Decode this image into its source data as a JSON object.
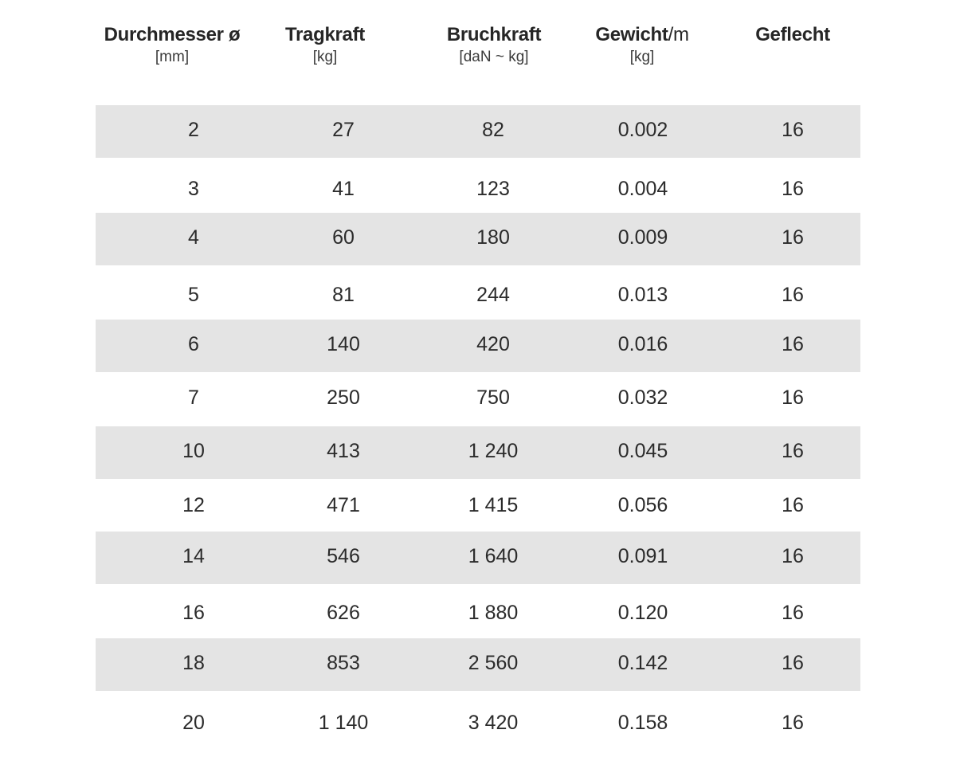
{
  "table": {
    "columns": [
      {
        "title": "Durchmesser ø",
        "title_suffix": "",
        "unit": "[mm]"
      },
      {
        "title": "Tragkraft",
        "title_suffix": "",
        "unit": "[kg]"
      },
      {
        "title": "Bruchkraft",
        "title_suffix": "",
        "unit": "[daN ~ kg]"
      },
      {
        "title": "Gewicht",
        "title_suffix": "/m",
        "unit": "[kg]"
      },
      {
        "title": "Geflecht",
        "title_suffix": "",
        "unit": ""
      }
    ],
    "rows": [
      [
        "2",
        "27",
        "82",
        "0.002",
        "16"
      ],
      [
        "3",
        "41",
        "123",
        "0.004",
        "16"
      ],
      [
        "4",
        "60",
        "180",
        "0.009",
        "16"
      ],
      [
        "5",
        "81",
        "244",
        "0.013",
        "16"
      ],
      [
        "6",
        "140",
        "420",
        "0.016",
        "16"
      ],
      [
        "7",
        "250",
        "750",
        "0.032",
        "16"
      ],
      [
        "10",
        "413",
        "1 240",
        "0.045",
        "16"
      ],
      [
        "12",
        "471",
        "1 415",
        "0.056",
        "16"
      ],
      [
        "14",
        "546",
        "1 640",
        "0.091",
        "16"
      ],
      [
        "16",
        "626",
        "1 880",
        "0.120",
        "16"
      ],
      [
        "18",
        "853",
        "2 560",
        "0.142",
        "16"
      ],
      [
        "20",
        "1 140",
        "3 420",
        "0.158",
        "16"
      ]
    ]
  },
  "colors": {
    "shaded_row": "#e4e4e4",
    "text": "#2b2b2b",
    "background": "#ffffff"
  }
}
